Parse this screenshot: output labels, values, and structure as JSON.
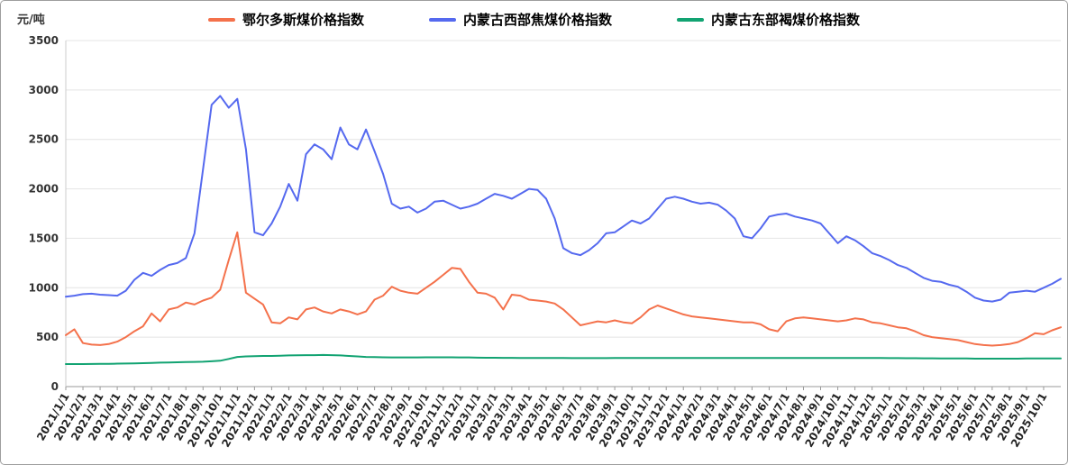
{
  "chart_data": {
    "type": "line",
    "title": "",
    "ylabel": "元/吨",
    "xlabel": "",
    "ylim": [
      0,
      3500
    ],
    "y_ticks": [
      0,
      500,
      1000,
      1500,
      2000,
      2500,
      3000,
      3500
    ],
    "grid": true,
    "legend_position": "top-center",
    "points_per_label": 2,
    "style": {
      "grid_color": "#e4e4e4",
      "axis_color": "#999999",
      "tick_label_color": "#222222",
      "background": "#ffffff"
    },
    "x_tick_labels": [
      "2021/1/1",
      "2021/2/1",
      "2021/3/1",
      "2021/4/1",
      "2021/5/1",
      "2021/6/1",
      "2021/7/1",
      "2021/8/1",
      "2021/9/1",
      "2021/10/1",
      "2021/11/1",
      "2021/12/1",
      "2022/1/1",
      "2022/2/1",
      "2022/3/1",
      "2022/4/1",
      "2022/5/1",
      "2022/6/1",
      "2022/7/1",
      "2022/8/1",
      "2022/9/1",
      "2022/10/1",
      "2022/11/1",
      "2022/12/1",
      "2023/1/1",
      "2023/2/1",
      "2023/3/1",
      "2023/4/1",
      "2023/5/1",
      "2023/6/1",
      "2023/7/1",
      "2023/8/1",
      "2023/9/1",
      "2023/10/1",
      "2023/11/1",
      "2023/12/1",
      "2024/1/1",
      "2024/2/1",
      "2024/3/1",
      "2024/4/1",
      "2024/5/1",
      "2024/6/1",
      "2024/7/1",
      "2024/8/1",
      "2024/9/1",
      "2024/10/1",
      "2024/11/1",
      "2024/12/1",
      "2025/1/1",
      "2025/2/1",
      "2025/3/1",
      "2025/4/1",
      "2025/5/1",
      "2025/6/1",
      "2025/7/1",
      "2025/8/1",
      "2025/9/1",
      "2025/10/1"
    ],
    "series": [
      {
        "name": "鄂尔多斯煤价格指数",
        "color": "#F4714B",
        "values": [
          520,
          580,
          440,
          425,
          420,
          430,
          455,
          500,
          560,
          610,
          740,
          660,
          780,
          800,
          850,
          830,
          870,
          900,
          980,
          1280,
          1560,
          950,
          890,
          830,
          650,
          640,
          700,
          680,
          780,
          800,
          760,
          740,
          780,
          760,
          730,
          760,
          880,
          920,
          1010,
          970,
          950,
          940,
          1000,
          1060,
          1130,
          1200,
          1190,
          1060,
          950,
          940,
          900,
          780,
          930,
          920,
          880,
          870,
          860,
          840,
          780,
          700,
          620,
          640,
          660,
          650,
          670,
          650,
          640,
          700,
          780,
          820,
          790,
          760,
          730,
          710,
          700,
          690,
          680,
          670,
          660,
          650,
          650,
          630,
          580,
          560,
          660,
          690,
          700,
          690,
          680,
          670,
          660,
          670,
          690,
          680,
          650,
          640,
          620,
          600,
          590,
          560,
          520,
          500,
          490,
          480,
          470,
          450,
          430,
          420,
          415,
          420,
          430,
          450,
          490,
          540,
          530,
          570,
          600
        ]
      },
      {
        "name": "内蒙古西部焦煤价格指数",
        "color": "#5569EF",
        "values": [
          910,
          920,
          935,
          940,
          930,
          925,
          920,
          970,
          1080,
          1150,
          1120,
          1180,
          1230,
          1250,
          1300,
          1550,
          2200,
          2850,
          2940,
          2820,
          2910,
          2400,
          1560,
          1530,
          1650,
          1820,
          2050,
          1880,
          2350,
          2450,
          2400,
          2300,
          2620,
          2450,
          2400,
          2600,
          2380,
          2150,
          1850,
          1800,
          1820,
          1760,
          1800,
          1870,
          1880,
          1840,
          1800,
          1820,
          1850,
          1900,
          1950,
          1930,
          1900,
          1950,
          2000,
          1990,
          1900,
          1700,
          1400,
          1350,
          1330,
          1380,
          1450,
          1550,
          1560,
          1620,
          1680,
          1650,
          1700,
          1800,
          1900,
          1920,
          1900,
          1870,
          1850,
          1860,
          1840,
          1780,
          1700,
          1520,
          1500,
          1600,
          1720,
          1740,
          1750,
          1720,
          1700,
          1680,
          1650,
          1550,
          1450,
          1520,
          1480,
          1420,
          1350,
          1320,
          1280,
          1230,
          1200,
          1150,
          1100,
          1070,
          1060,
          1030,
          1010,
          960,
          900,
          870,
          860,
          880,
          950,
          960,
          970,
          960,
          1000,
          1040,
          1090
        ]
      },
      {
        "name": "内蒙古东部褐煤价格指数",
        "color": "#12A372",
        "values": [
          228,
          228,
          228,
          229,
          230,
          230,
          232,
          233,
          235,
          237,
          240,
          242,
          244,
          246,
          248,
          250,
          252,
          256,
          262,
          280,
          300,
          305,
          308,
          310,
          310,
          312,
          315,
          316,
          318,
          318,
          320,
          318,
          315,
          310,
          305,
          300,
          298,
          296,
          295,
          295,
          295,
          295,
          296,
          296,
          296,
          296,
          295,
          295,
          293,
          292,
          292,
          291,
          291,
          290,
          290,
          290,
          290,
          289,
          289,
          288,
          288,
          288,
          288,
          288,
          289,
          289,
          289,
          290,
          290,
          290,
          290,
          290,
          290,
          290,
          290,
          290,
          290,
          289,
          289,
          289,
          289,
          289,
          290,
          290,
          290,
          290,
          290,
          290,
          290,
          290,
          290,
          290,
          290,
          290,
          289,
          289,
          288,
          288,
          287,
          287,
          286,
          286,
          285,
          285,
          284,
          284,
          283,
          283,
          283,
          283,
          283,
          283,
          284,
          284,
          284,
          284,
          285
        ]
      }
    ]
  }
}
